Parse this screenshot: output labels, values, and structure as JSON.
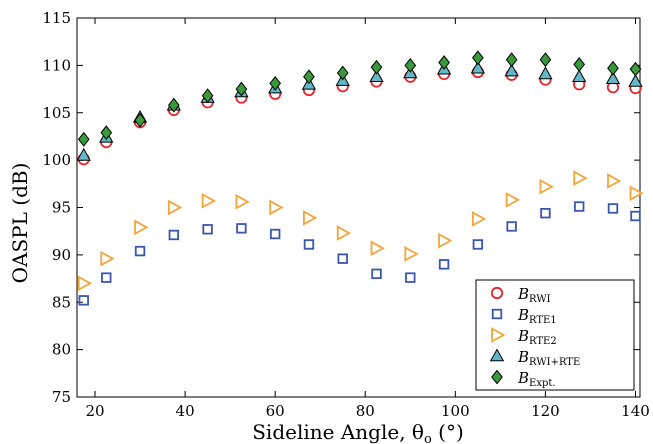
{
  "chart_data": {
    "type": "scatter",
    "xlabel": "Sideline Angle, θ",
    "xlabel_sub": "o",
    "xlabel_unit": " (°)",
    "ylabel": "OASPL (dB)",
    "xlim": [
      16,
      141
    ],
    "ylim": [
      75,
      115
    ],
    "xticks": [
      20,
      40,
      60,
      80,
      100,
      120,
      140
    ],
    "yticks": [
      75,
      80,
      85,
      90,
      95,
      100,
      105,
      110,
      115
    ],
    "legend_position": "bottom-right",
    "grid": false,
    "series": [
      {
        "name": "B",
        "name_sub": "RWI",
        "marker": "circle",
        "color": "#e8232a",
        "x": [
          17.5,
          22.5,
          30,
          37.5,
          45,
          52.5,
          60,
          67.5,
          75,
          82.5,
          90,
          97.5,
          105,
          112.5,
          120,
          127.5,
          135,
          140
        ],
        "y": [
          100.1,
          101.9,
          104.0,
          105.3,
          106.1,
          106.6,
          107.0,
          107.4,
          107.8,
          108.3,
          108.8,
          109.1,
          109.3,
          109.0,
          108.5,
          108.0,
          107.7,
          107.6
        ]
      },
      {
        "name": "B",
        "name_sub": "RTE1",
        "marker": "square",
        "color": "#3a56b0",
        "x": [
          17.5,
          22.5,
          30,
          37.5,
          45,
          52.5,
          60,
          67.5,
          75,
          82.5,
          90,
          97.5,
          105,
          112.5,
          120,
          127.5,
          135,
          140
        ],
        "y": [
          85.2,
          87.6,
          90.4,
          92.1,
          92.7,
          92.8,
          92.2,
          91.1,
          89.6,
          88.0,
          87.6,
          89.0,
          91.1,
          93.0,
          94.4,
          95.1,
          94.9,
          94.1
        ]
      },
      {
        "name": "B",
        "name_sub": "RTE2",
        "marker": "triangle-right",
        "color": "#f3a53a",
        "x": [
          17.5,
          22.5,
          30,
          37.5,
          45,
          52.5,
          60,
          67.5,
          75,
          82.5,
          90,
          97.5,
          105,
          112.5,
          120,
          127.5,
          135,
          140
        ],
        "y": [
          87.0,
          89.6,
          92.9,
          95.0,
          95.7,
          95.6,
          95.0,
          93.9,
          92.3,
          90.7,
          90.1,
          91.5,
          93.8,
          95.8,
          97.2,
          98.1,
          97.8,
          96.5
        ]
      },
      {
        "name": "B",
        "name_sub": "RWI+RTE",
        "marker": "triangle-up",
        "color": "#63b8c8",
        "x": [
          17.5,
          22.5,
          30,
          37.5,
          45,
          52.5,
          60,
          67.5,
          75,
          82.5,
          90,
          97.5,
          105,
          112.5,
          120,
          127.5,
          135,
          140
        ],
        "y": [
          100.5,
          102.4,
          104.5,
          105.8,
          106.6,
          107.2,
          107.6,
          108.0,
          108.4,
          108.8,
          109.2,
          109.6,
          109.7,
          109.4,
          109.1,
          108.8,
          108.6,
          108.3
        ]
      },
      {
        "name": "B",
        "name_sub": "Expt.",
        "marker": "diamond",
        "color": "#3a9a3a",
        "x": [
          17.5,
          22.5,
          30,
          37.5,
          45,
          52.5,
          60,
          67.5,
          75,
          82.5,
          90,
          97.5,
          105,
          112.5,
          120,
          127.5,
          135,
          140
        ],
        "y": [
          102.2,
          102.9,
          104.2,
          105.8,
          106.8,
          107.5,
          108.1,
          108.8,
          109.2,
          109.8,
          110.0,
          110.3,
          110.8,
          110.6,
          110.6,
          110.1,
          109.7,
          109.6
        ]
      }
    ]
  }
}
